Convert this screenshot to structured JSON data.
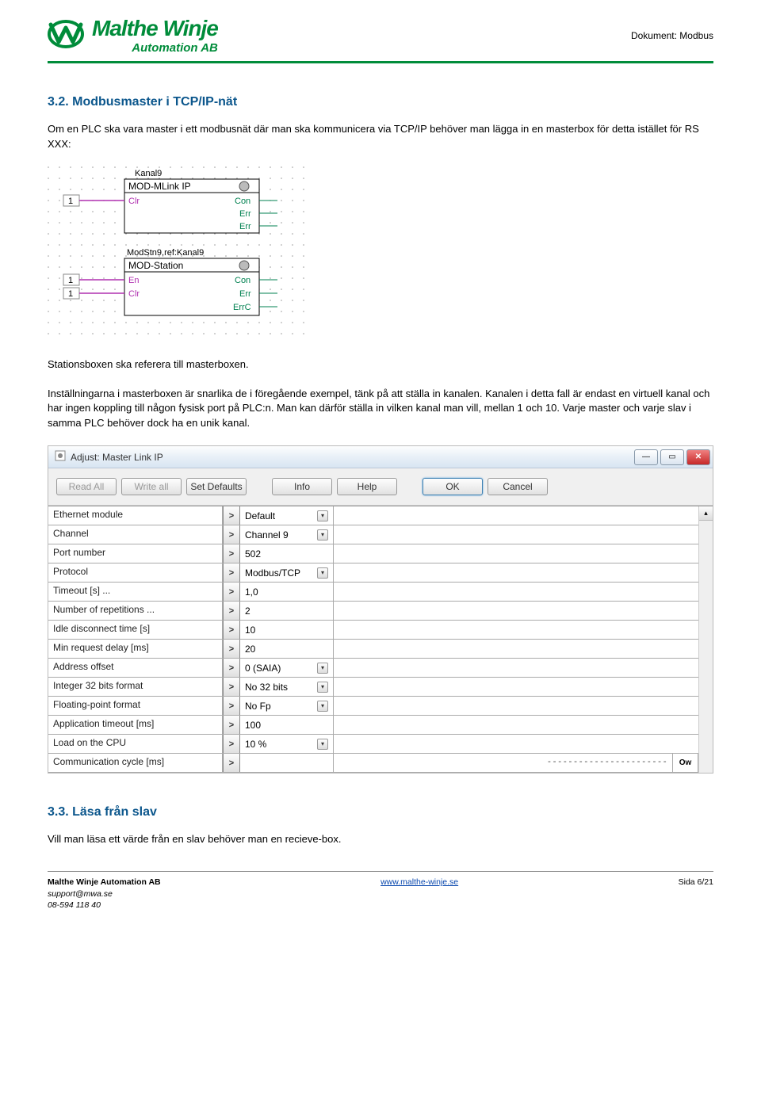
{
  "header": {
    "logo_main": "Malthe Winje",
    "logo_sub": "Automation AB",
    "doc_label": "Dokument: Modbus"
  },
  "section32_heading": "3.2.   Modbusmaster i TCP/IP-nät",
  "para1": "Om en PLC ska vara master i ett modbusnät där man ska kommunicera via TCP/IP behöver man lägga in en masterbox för detta istället för RS XXX:",
  "diagram": {
    "block1": {
      "title": "Kanal9",
      "name": "MOD-MLink IP",
      "in1_num": "1",
      "left": "Clr",
      "right1": "Con",
      "right2": "Err",
      "right3": "Err"
    },
    "block2": {
      "title": "ModStn9,ref:Kanal9",
      "name": "MOD-Station",
      "in1_num": "1",
      "in2_num": "1",
      "left1": "En",
      "left2": "Clr",
      "right1": "Con",
      "right2": "Err",
      "right3": "ErrC"
    }
  },
  "para2": "Stationsboxen ska referera till masterboxen.",
  "para3": "Inställningarna i masterboxen är snarlika de i föregående exempel, tänk på att ställa in kanalen. Kanalen i detta fall är endast en virtuell kanal och har ingen koppling till någon fysisk port på PLC:n. Man kan därför ställa in vilken kanal man vill, mellan 1 och 10. Varje master och varje slav i samma PLC behöver dock ha en unik kanal.",
  "dialog": {
    "title": "Adjust: Master Link IP",
    "buttons": {
      "read_all": "Read All",
      "write_all": "Write all",
      "set_defaults": "Set Defaults",
      "info": "Info",
      "help": "Help",
      "ok": "OK",
      "cancel": "Cancel"
    },
    "rows": [
      {
        "label": "Ethernet module",
        "value": "Default",
        "dropdown": true
      },
      {
        "label": "Channel",
        "value": "Channel 9",
        "dropdown": true
      },
      {
        "label": "Port number",
        "value": "502",
        "dropdown": false
      },
      {
        "label": "Protocol",
        "value": "Modbus/TCP",
        "dropdown": true
      },
      {
        "label": "Timeout [s] ...",
        "value": "1,0",
        "dropdown": false
      },
      {
        "label": "Number of repetitions ...",
        "value": "2",
        "dropdown": false
      },
      {
        "label": "Idle disconnect time [s]",
        "value": "10",
        "dropdown": false
      },
      {
        "label": "Min request delay [ms]",
        "value": "20",
        "dropdown": false
      },
      {
        "label": "Address offset",
        "value": "0 (SAIA)",
        "dropdown": true
      },
      {
        "label": "Integer 32 bits format",
        "value": "No 32 bits",
        "dropdown": true
      },
      {
        "label": "Floating-point format",
        "value": "No Fp",
        "dropdown": true
      },
      {
        "label": "Application timeout [ms]",
        "value": "100",
        "dropdown": false
      },
      {
        "label": "Load on the CPU",
        "value": "10 %",
        "dropdown": true
      },
      {
        "label": "Communication cycle [ms]",
        "value": "",
        "blank_wide": true,
        "end_tag": "Ow"
      }
    ]
  },
  "section33_heading": "3.3.   Läsa från slav",
  "para4": "Vill man läsa ett värde från en slav behöver man en recieve-box.",
  "footer": {
    "company": "Malthe Winje Automation AB",
    "email": "support@mwa.se",
    "phone": "08-594 118 40",
    "url": "www.malthe-winje.se",
    "page": "Sida 6/21"
  },
  "colors": {
    "heading": "#0b568c",
    "brand": "#008c3a",
    "win_close": "#c62828"
  }
}
